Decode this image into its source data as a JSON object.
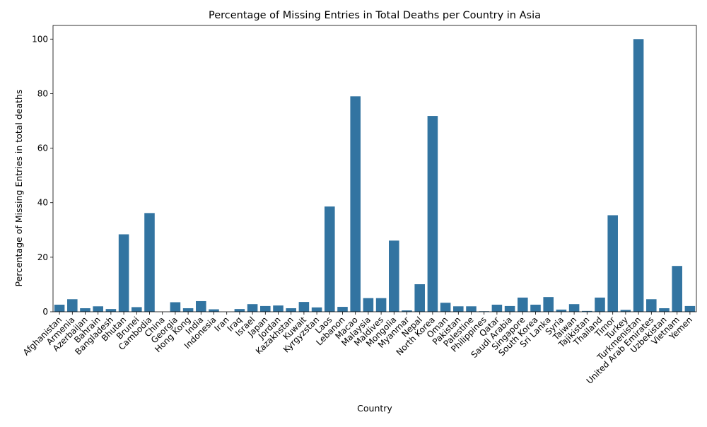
{
  "chart_data": {
    "type": "bar",
    "title": "Percentage of Missing Entries in Total Deaths per Country in Asia",
    "xlabel": "Country",
    "ylabel": "Percentage of Missing Entries in total deaths",
    "ylim": [
      0,
      105
    ],
    "yticks": [
      0,
      20,
      40,
      60,
      80,
      100
    ],
    "grid": false,
    "bar_color": "#3274a1",
    "categories": [
      "Afghanistan",
      "Armenia",
      "Azerbaijan",
      "Bahrain",
      "Bangladesh",
      "Bhutan",
      "Brunei",
      "Cambodia",
      "China",
      "Georgia",
      "Hong Kong",
      "India",
      "Indonesia",
      "Iran",
      "Iraq",
      "Israel",
      "Japan",
      "Jordan",
      "Kazakhstan",
      "Kuwait",
      "Kyrgyzstan",
      "Laos",
      "Lebanon",
      "Macao",
      "Malaysia",
      "Maldives",
      "Mongolia",
      "Myanmar",
      "Nepal",
      "North Korea",
      "Oman",
      "Pakistan",
      "Palestine",
      "Philippines",
      "Qatar",
      "Saudi Arabia",
      "Singapore",
      "South Korea",
      "Sri Lanka",
      "Syria",
      "Taiwan",
      "Tajikistan",
      "Thailand",
      "Timor",
      "Turkey",
      "Turkmenistan",
      "United Arab Emirates",
      "Uzbekistan",
      "Vietnam",
      "Yemen"
    ],
    "values": [
      2.6,
      4.6,
      1.3,
      2.0,
      1.0,
      28.4,
      1.7,
      36.2,
      0.0,
      3.5,
      1.3,
      3.9,
      0.9,
      0.0,
      1.0,
      2.8,
      2.1,
      2.3,
      1.3,
      3.6,
      1.6,
      38.6,
      1.8,
      79.0,
      5.0,
      5.0,
      26.1,
      0.5,
      10.1,
      71.8,
      3.3,
      2.0,
      2.0,
      0.2,
      2.6,
      2.1,
      5.2,
      2.6,
      5.4,
      0.8,
      2.8,
      0.3,
      5.2,
      35.4,
      0.7,
      100.0,
      4.6,
      1.3,
      16.8,
      2.1
    ]
  }
}
